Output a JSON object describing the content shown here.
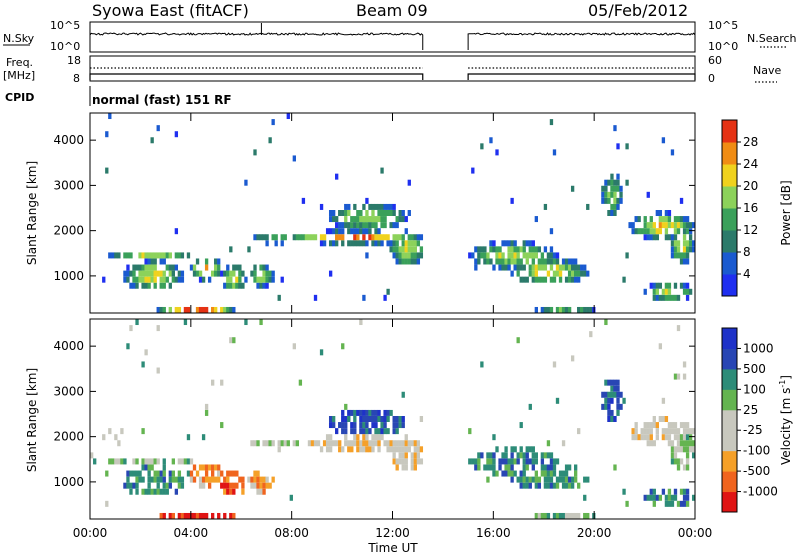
{
  "header": {
    "station": "Syowa East (fitACF)",
    "beam": "Beam 09",
    "date": "05/Feb/2012"
  },
  "labels": {
    "nsky": "N.Sky",
    "nsearch": "N.Search",
    "freq_line1": "Freq.",
    "freq_line2": "[MHz]",
    "nave": "Nave",
    "cpid": "CPID",
    "cpid_value": "normal (fast) 151 RF",
    "x_axis": "Time UT",
    "y_axis": "Slant Range [km]",
    "power_cbar": "Power [dB]",
    "velocity_cbar": "Velocity [m s",
    "velocity_cbar_sup": "-1",
    "velocity_cbar_end": "]"
  },
  "ticks": {
    "nsky_left": [
      "10^5",
      "10^0"
    ],
    "nsky_right": [
      "10^5",
      "10^0"
    ],
    "freq_left": [
      "18",
      "8"
    ],
    "nave_right": [
      "60",
      "0"
    ],
    "time": [
      "00:00",
      "04:00",
      "08:00",
      "12:00",
      "16:00",
      "20:00",
      "00:00"
    ],
    "range": [
      "1000",
      "2000",
      "3000",
      "4000"
    ],
    "power": [
      "4",
      "8",
      "12",
      "16",
      "20",
      "24",
      "28"
    ],
    "velocity": [
      "-1000",
      "-500",
      "-100",
      "-25",
      "25",
      "100",
      "500",
      "1000"
    ]
  },
  "chart_data": [
    {
      "type": "heatmap",
      "name": "power",
      "xlabel": "Time UT",
      "ylabel": "Slant Range [km]",
      "xlim_hours": [
        0,
        24
      ],
      "ylim_km": [
        180,
        4600
      ],
      "data_gap_hours": [
        13.2,
        15.0
      ],
      "colorbar_label": "Power [dB]",
      "colorbar_ticks": [
        4,
        8,
        12,
        16,
        20,
        24,
        28
      ],
      "colorbar_range": [
        0,
        32
      ],
      "palette": [
        "#1f2ff0",
        "#1a5ad0",
        "#2b7a6a",
        "#3aa05a",
        "#8cd25a",
        "#f0d21e",
        "#f08c14",
        "#e53214"
      ]
    },
    {
      "type": "heatmap",
      "name": "velocity",
      "xlabel": "Time UT",
      "ylabel": "Slant Range [km]",
      "xlim_hours": [
        0,
        24
      ],
      "ylim_km": [
        180,
        4600
      ],
      "data_gap_hours": [
        13.2,
        15.0
      ],
      "colorbar_label": "Velocity [m s-1]",
      "colorbar_ticks": [
        -1000,
        -500,
        -100,
        -25,
        25,
        100,
        500,
        1000
      ],
      "palette": [
        "#e01414",
        "#f0641e",
        "#f5a028",
        "#c8c8be",
        "#c8c8be",
        "#64b450",
        "#2d8c78",
        "#2846b4",
        "#1e32c8"
      ]
    }
  ]
}
